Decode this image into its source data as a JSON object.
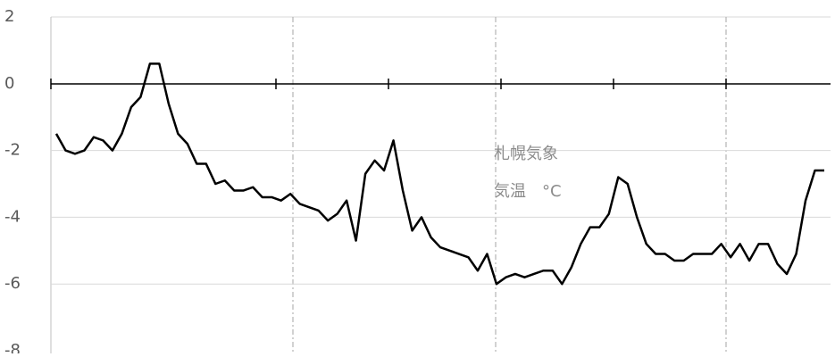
{
  "chart_data": {
    "type": "line",
    "annotations": [
      "札幌気象",
      "気温　°C"
    ],
    "series": [
      {
        "color": "#000000",
        "values": [
          -1.5,
          -2.0,
          -2.1,
          -2.0,
          -1.6,
          -1.7,
          -2.0,
          -1.5,
          -0.7,
          -0.4,
          0.6,
          0.6,
          -0.6,
          -1.5,
          -1.8,
          -2.4,
          -2.4,
          -3.0,
          -2.9,
          -3.2,
          -3.2,
          -3.1,
          -3.4,
          -3.4,
          -3.5,
          -3.3,
          -3.6,
          -3.7,
          -3.8,
          -4.1,
          -3.9,
          -3.5,
          -4.7,
          -2.7,
          -2.3,
          -2.6,
          -1.7,
          -3.2,
          -4.4,
          -4.0,
          -4.6,
          -4.9,
          -5.0,
          -5.1,
          -5.2,
          -5.6,
          -5.1,
          -6.0,
          -5.8,
          -5.7,
          -5.8,
          -5.7,
          -5.6,
          -5.6,
          -6.0,
          -5.5,
          -4.8,
          -4.3,
          -4.3,
          -3.9,
          -2.8,
          -3.0,
          -4.0,
          -4.8,
          -5.1,
          -5.1,
          -5.3,
          -5.3,
          -5.1,
          -5.1,
          -5.1,
          -4.8,
          -5.2,
          -4.8,
          -5.3,
          -4.8,
          -4.8,
          -5.4,
          -5.7,
          -5.1,
          -3.5,
          -2.6,
          -2.6
        ]
      }
    ],
    "ylim": [
      -8,
      2
    ],
    "yticks": [
      -8,
      -6,
      -4,
      -2,
      0,
      2
    ],
    "grid": true
  }
}
